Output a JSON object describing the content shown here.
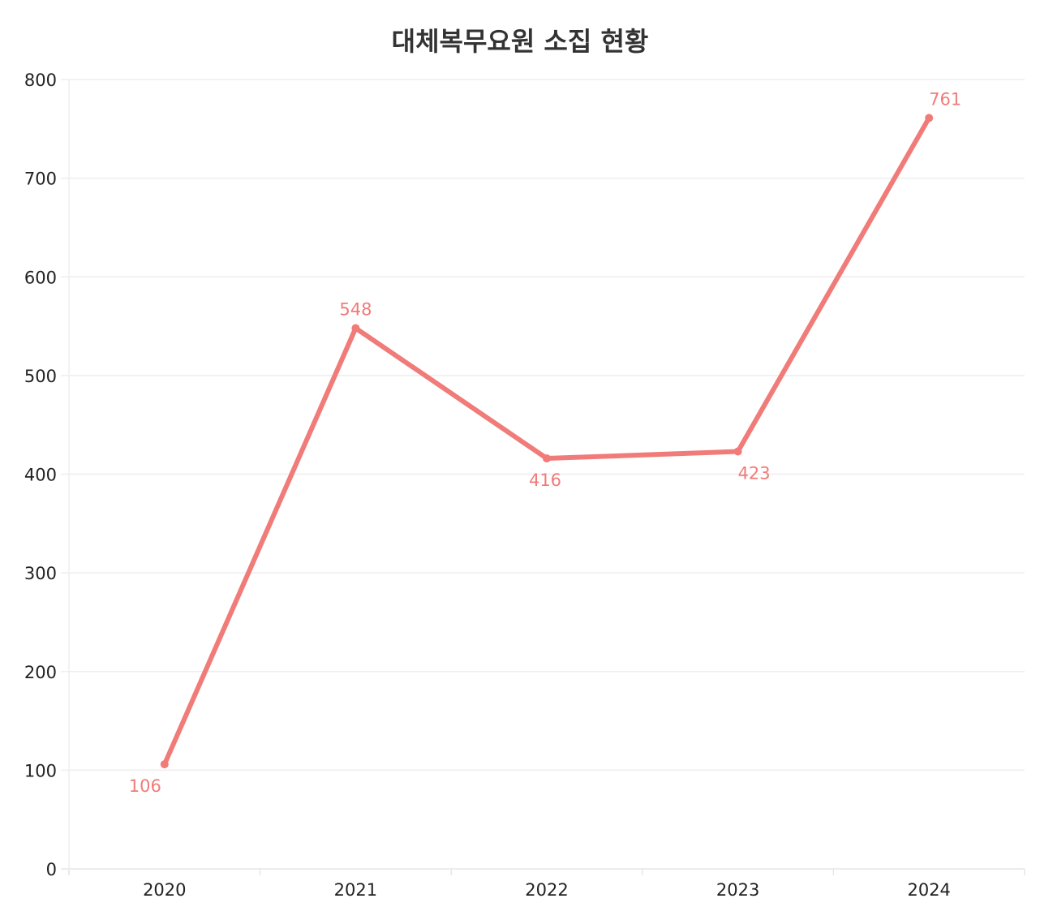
{
  "chart_data": {
    "type": "line",
    "title": "대체복무요원 소집 현황",
    "categories": [
      "2020",
      "2021",
      "2022",
      "2023",
      "2024"
    ],
    "values": [
      106,
      548,
      416,
      423,
      761
    ],
    "data_labels": [
      "106",
      "548",
      "416",
      "423",
      "761"
    ],
    "xlabel": "",
    "ylabel": "",
    "ylim": [
      0,
      800
    ],
    "yticks": [
      0,
      100,
      200,
      300,
      400,
      500,
      600,
      700,
      800
    ],
    "grid": true,
    "legend": "none",
    "color": "#f07b78"
  }
}
